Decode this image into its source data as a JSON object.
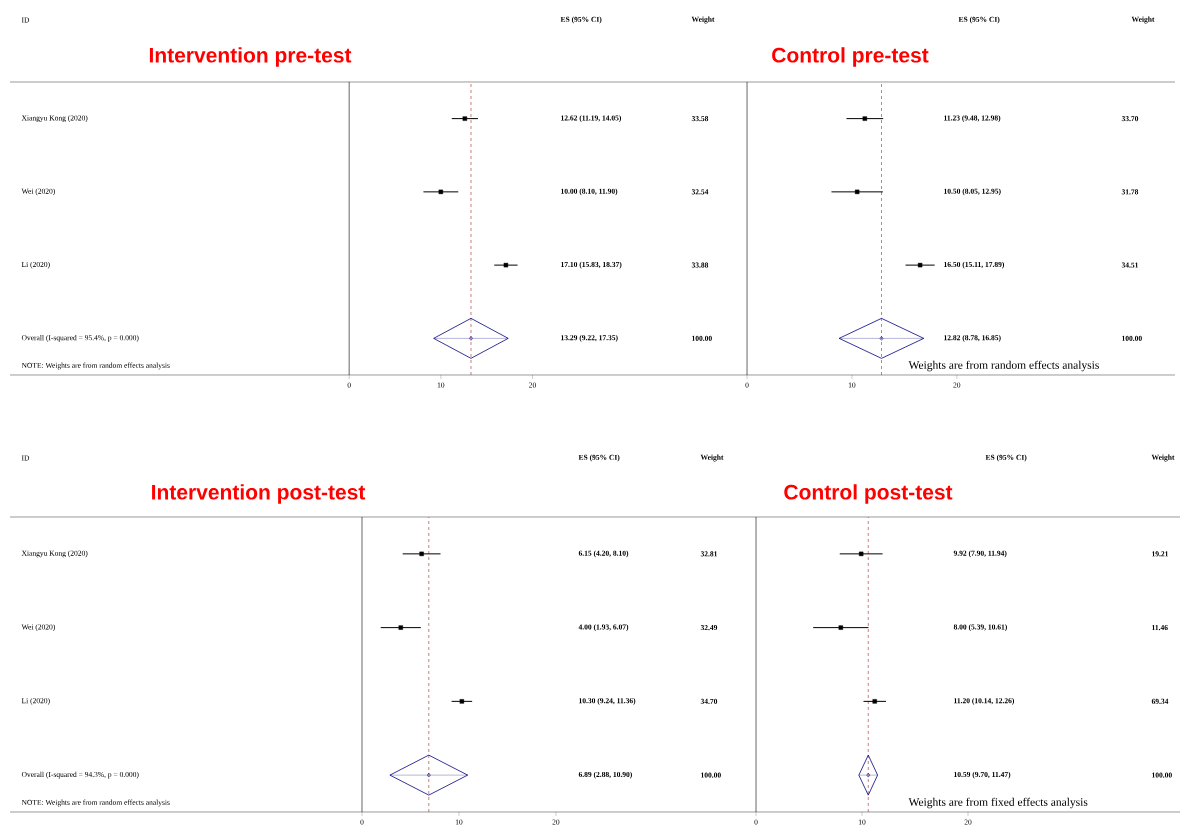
{
  "chart_data": [
    {
      "type": "scatter",
      "title": "Intervention pre-test",
      "ylabel": "ID",
      "orientation": "horizontal",
      "categories": [
        "Xiangyu Kong (2020)",
        "Wei (2020)",
        "Li (2020)",
        "Overall  (I-squared = 95.4%, p = 0.000)"
      ],
      "series": [
        {
          "marker": "square",
          "color": "#000000",
          "values": [
            12.62,
            10.0,
            17.1,
            null
          ],
          "errors": [
            [
              11.19,
              14.05
            ],
            [
              8.1,
              11.9
            ],
            [
              15.83,
              18.37
            ],
            null
          ]
        },
        {
          "marker": "diamond",
          "color": "#000080",
          "values": [
            null,
            null,
            null,
            13.29
          ],
          "errors": [
            null,
            null,
            null,
            [
              9.22,
              17.35
            ]
          ]
        }
      ],
      "value_labels": [
        "12.62 (11.19, 14.05)",
        "10.00 (8.10, 11.90)",
        "17.10 (15.83, 18.37)",
        "13.29 (9.22, 17.35)"
      ],
      "annotations": [
        "ES (95% CI)",
        "Weight",
        "33.58",
        "32.54",
        "33.88",
        "100.00",
        "NOTE: Weights are from random effects analysis"
      ],
      "xlim": [
        -37,
        41
      ],
      "xticks": [
        0,
        10,
        20
      ],
      "ref_lines": [
        {
          "axis": "x",
          "value": 0,
          "color": "#000000",
          "line_style": "solid"
        },
        {
          "axis": "x",
          "value": 13.29,
          "color": "#a52a2a",
          "line_style": "dashed"
        }
      ]
    },
    {
      "type": "scatter",
      "title": "Control pre-test",
      "orientation": "horizontal",
      "categories": [
        null,
        null,
        null,
        null
      ],
      "series": [
        {
          "marker": "square",
          "color": "#000000",
          "values": [
            11.23,
            10.5,
            16.5,
            null
          ],
          "errors": [
            [
              9.48,
              12.98
            ],
            [
              8.05,
              12.95
            ],
            [
              15.11,
              17.89
            ],
            null
          ]
        },
        {
          "marker": "diamond",
          "color": "#000080",
          "values": [
            null,
            null,
            null,
            12.82
          ],
          "errors": [
            null,
            null,
            null,
            [
              8.78,
              16.85
            ]
          ]
        }
      ],
      "value_labels": [
        "11.23 (9.48, 12.98)",
        "10.50 (8.05, 12.95)",
        "16.50 (15.11, 17.89)",
        "12.82 (8.78, 16.85)"
      ],
      "annotations": [
        "ES (95% CI)",
        "Weight",
        "33.70",
        "31.78",
        "34.51",
        "100.00",
        "Weights are from random effects analysis"
      ],
      "xlim": [
        -2.1,
        40.8
      ],
      "xticks": [
        0,
        10,
        20
      ],
      "ref_lines": [
        {
          "axis": "x",
          "value": 0,
          "color": "#000000",
          "line_style": "solid"
        },
        {
          "axis": "x",
          "value": 12.82,
          "color": "#a52a2a",
          "line_style": "dashed"
        }
      ]
    },
    {
      "type": "scatter",
      "title": "Intervention post-test",
      "ylabel": "ID",
      "orientation": "horizontal",
      "categories": [
        "Xiangyu Kong (2020)",
        "Wei (2020)",
        "Li (2020)",
        "Overall  (I-squared = 94.3%, p = 0.000)"
      ],
      "series": [
        {
          "marker": "square",
          "color": "#000000",
          "values": [
            6.15,
            4.0,
            10.3,
            null
          ],
          "errors": [
            [
              4.2,
              8.1
            ],
            [
              1.93,
              6.07
            ],
            [
              9.24,
              11.36
            ],
            null
          ]
        },
        {
          "marker": "diamond",
          "color": "#000080",
          "values": [
            null,
            null,
            null,
            6.89
          ],
          "errors": [
            null,
            null,
            null,
            [
              2.88,
              10.9
            ]
          ]
        }
      ],
      "value_labels": [
        "6.15 (4.20, 8.10)",
        "4.00 (1.93, 6.07)",
        "10.30 (9.24, 11.36)",
        "6.89 (2.88, 10.90)"
      ],
      "annotations": [
        "ES (95% CI)",
        "Weight",
        "32.81",
        "32.49",
        "34.70",
        "100.00",
        "NOTE: Weights are from random effects analysis"
      ],
      "xlim": [
        -36.3,
        39.5
      ],
      "xticks": [
        0,
        10,
        20
      ],
      "ref_lines": [
        {
          "axis": "x",
          "value": 0,
          "color": "#000000",
          "line_style": "solid"
        },
        {
          "axis": "x",
          "value": 6.89,
          "color": "#a52a2a",
          "line_style": "dashed"
        }
      ]
    },
    {
      "type": "scatter",
      "title": "Control post-test",
      "orientation": "horizontal",
      "categories": [
        null,
        null,
        null,
        null
      ],
      "series": [
        {
          "marker": "square",
          "color": "#000000",
          "values": [
            9.92,
            8.0,
            11.2,
            null
          ],
          "errors": [
            [
              7.9,
              11.94
            ],
            [
              5.39,
              10.61
            ],
            [
              10.14,
              12.26
            ],
            null
          ]
        },
        {
          "marker": "diamond",
          "color": "#000080",
          "values": [
            null,
            null,
            null,
            10.59
          ],
          "errors": [
            null,
            null,
            null,
            [
              9.7,
              11.47
            ]
          ]
        }
      ],
      "value_labels": [
        "9.92 (7.90, 11.94)",
        "8.00 (5.39, 10.61)",
        "11.20 (10.14, 12.26)",
        "10.59 (9.70, 11.47)"
      ],
      "annotations": [
        "ES (95% CI)",
        "Weight",
        "19.21",
        "11.46",
        "69.34",
        "100.00",
        "Weights are from fixed effects analysis"
      ],
      "xlim": [
        -1.04,
        40.0
      ],
      "xticks": [
        0,
        10,
        20
      ],
      "ref_lines": [
        {
          "axis": "x",
          "value": 0,
          "color": "#000000",
          "line_style": "solid"
        },
        {
          "axis": "x",
          "value": 10.59,
          "color": "#a52a2a",
          "line_style": "dashed"
        }
      ]
    }
  ]
}
